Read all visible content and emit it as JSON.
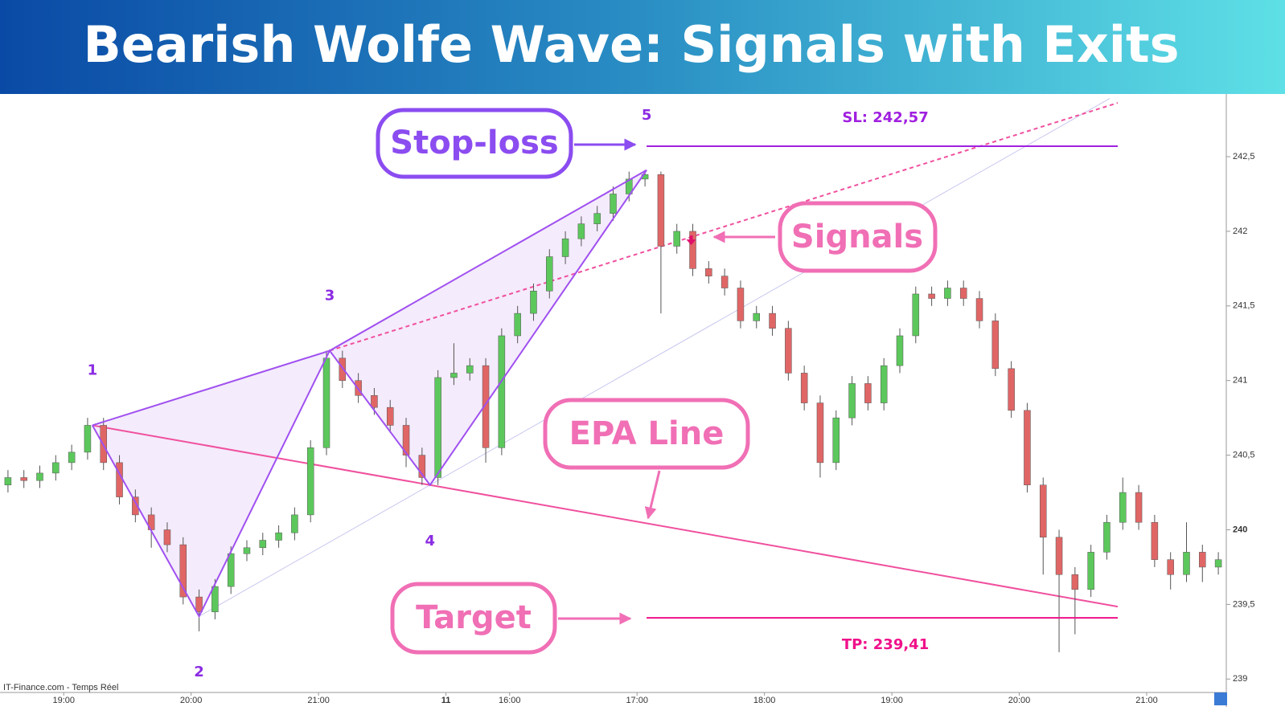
{
  "chart_data": {
    "type": "candlestick",
    "title": "Bearish Wolfe Wave: Signals with Exits",
    "source": "IT-Finance.com - Temps Réel",
    "up_color": "#5cc85c",
    "down_color": "#e06666",
    "xlim": [
      -0.5,
      76.5
    ],
    "xticks": [
      {
        "value": 3.5,
        "label": "19:00"
      },
      {
        "value": 11.5,
        "label": "20:00"
      },
      {
        "value": 19.5,
        "label": "21:00"
      },
      {
        "value": 27.5,
        "label": "11"
      },
      {
        "value": 31.5,
        "label": "16:00"
      },
      {
        "value": 39.5,
        "label": "17:00"
      },
      {
        "value": 47.5,
        "label": "18:00"
      },
      {
        "value": 55.5,
        "label": "19:00"
      },
      {
        "value": 63.5,
        "label": "20:00"
      },
      {
        "value": 71.5,
        "label": "21:00"
      }
    ],
    "ylim": [
      238.91,
      242.92
    ],
    "yticks": [
      {
        "value": 239,
        "label": "239"
      },
      {
        "value": 239.5,
        "label": "239,5"
      },
      {
        "value": 240,
        "label": "240"
      },
      {
        "value": 240.5,
        "label": "240,5"
      },
      {
        "value": 241,
        "label": "241"
      },
      {
        "value": 241.5,
        "label": "241,5"
      },
      {
        "value": 242,
        "label": "242"
      },
      {
        "value": 242.5,
        "label": "242,5"
      }
    ],
    "open": [
      240.3,
      240.35,
      240.33,
      240.38,
      240.45,
      240.52,
      240.7,
      240.45,
      240.22,
      240.1,
      240.0,
      239.9,
      239.55,
      239.45,
      239.62,
      239.84,
      239.88,
      239.93,
      239.98,
      240.1,
      240.55,
      241.15,
      241.0,
      240.9,
      240.82,
      240.7,
      240.5,
      240.35,
      241.02,
      241.05,
      241.1,
      240.55,
      241.3,
      241.45,
      241.6,
      241.83,
      241.95,
      242.05,
      242.12,
      242.25,
      242.35,
      242.38,
      241.9,
      242.0,
      241.75,
      241.7,
      241.62,
      241.4,
      241.45,
      241.35,
      241.05,
      240.85,
      240.45,
      240.75,
      240.98,
      240.85,
      241.1,
      241.3,
      241.58,
      241.55,
      241.62,
      241.55,
      241.4,
      241.08,
      240.8,
      240.3,
      239.95,
      239.7,
      239.6,
      239.85,
      240.05,
      240.25,
      240.05,
      239.8,
      239.7,
      239.85,
      239.75
    ],
    "high": [
      240.4,
      240.4,
      240.43,
      240.5,
      240.57,
      240.75,
      240.75,
      240.5,
      240.27,
      240.15,
      240.05,
      239.95,
      239.6,
      239.67,
      239.89,
      239.93,
      239.98,
      240.03,
      240.15,
      240.6,
      241.2,
      241.2,
      241.05,
      240.95,
      240.87,
      240.75,
      240.55,
      241.07,
      241.25,
      241.15,
      241.15,
      241.35,
      241.5,
      241.65,
      241.88,
      242.0,
      242.1,
      242.17,
      242.3,
      242.4,
      242.41,
      242.4,
      242.05,
      242.05,
      241.8,
      241.75,
      241.67,
      241.5,
      241.5,
      241.4,
      241.1,
      240.9,
      240.8,
      241.03,
      241.03,
      241.15,
      241.35,
      241.63,
      241.63,
      241.67,
      241.67,
      241.6,
      241.45,
      241.13,
      240.85,
      240.35,
      240.0,
      239.75,
      239.9,
      240.1,
      240.35,
      240.3,
      240.1,
      239.85,
      240.05,
      239.9,
      239.85
    ],
    "low": [
      240.25,
      240.28,
      240.28,
      240.33,
      240.4,
      240.47,
      240.4,
      240.17,
      240.05,
      239.88,
      239.85,
      239.5,
      239.32,
      239.4,
      239.57,
      239.79,
      239.83,
      239.88,
      239.93,
      240.05,
      240.5,
      240.95,
      240.85,
      240.77,
      240.65,
      240.42,
      240.3,
      240.3,
      240.97,
      241.0,
      240.45,
      240.5,
      241.25,
      241.4,
      241.55,
      241.78,
      241.9,
      242.0,
      242.07,
      242.2,
      242.3,
      241.45,
      241.85,
      241.7,
      241.65,
      241.57,
      241.35,
      241.35,
      241.3,
      241.0,
      240.8,
      240.35,
      240.4,
      240.7,
      240.8,
      240.8,
      241.05,
      241.25,
      241.5,
      241.5,
      241.5,
      241.35,
      241.03,
      240.75,
      240.25,
      239.7,
      239.18,
      239.3,
      239.55,
      239.8,
      240.0,
      240.0,
      239.75,
      239.6,
      239.65,
      239.65,
      239.7
    ],
    "close": [
      240.35,
      240.33,
      240.38,
      240.45,
      240.52,
      240.7,
      240.45,
      240.22,
      240.1,
      240.0,
      239.9,
      239.55,
      239.45,
      239.62,
      239.84,
      239.88,
      239.93,
      239.98,
      240.1,
      240.55,
      241.15,
      241.0,
      240.9,
      240.82,
      240.7,
      240.5,
      240.35,
      241.02,
      241.05,
      241.1,
      240.55,
      241.3,
      241.45,
      241.6,
      241.83,
      241.95,
      242.05,
      242.12,
      242.25,
      242.35,
      242.38,
      241.9,
      242.0,
      241.75,
      241.7,
      241.62,
      241.4,
      241.45,
      241.35,
      241.05,
      240.85,
      240.45,
      240.75,
      240.98,
      240.85,
      241.1,
      241.3,
      241.58,
      241.55,
      241.62,
      241.55,
      241.4,
      241.08,
      240.8,
      240.3,
      239.95,
      239.7,
      239.6,
      239.85,
      240.05,
      240.25,
      240.05,
      239.8,
      239.7,
      239.85,
      239.75,
      239.8
    ],
    "wolfe_points": [
      {
        "label": "1",
        "x": 5.3,
        "y": 240.7
      },
      {
        "label": "2",
        "x": 12.0,
        "y": 239.42
      },
      {
        "label": "3",
        "x": 20.2,
        "y": 241.2
      },
      {
        "label": "4",
        "x": 26.5,
        "y": 240.3
      },
      {
        "label": "5",
        "x": 40.1,
        "y": 242.41
      }
    ],
    "stop_loss": {
      "label": "SL: 242,57",
      "value": 242.57
    },
    "target": {
      "label": "TP: 239,41",
      "value": 239.41
    },
    "signal": {
      "x": 42.9,
      "y": 241.94
    },
    "callouts": {
      "stop_loss": "Stop-loss",
      "signals": "Signals",
      "epa": "EPA Line",
      "target": "Target"
    }
  }
}
